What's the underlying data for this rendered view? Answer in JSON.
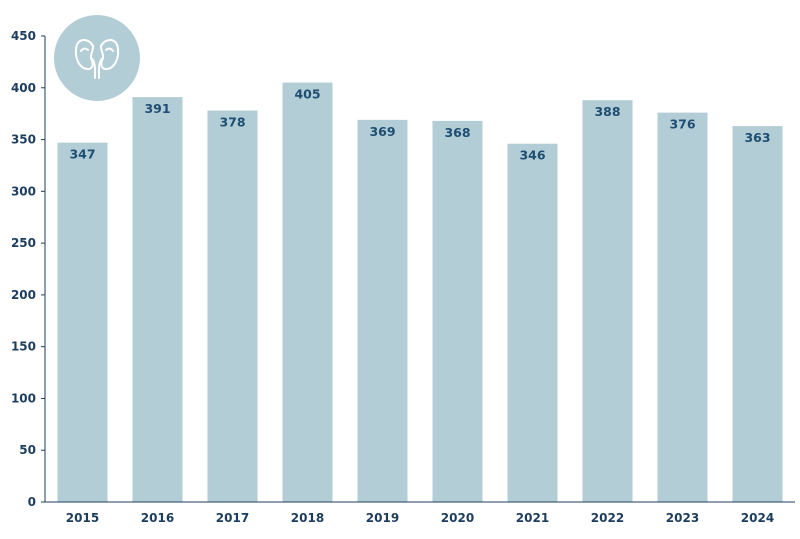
{
  "chart_data": {
    "type": "bar",
    "categories": [
      "2015",
      "2016",
      "2017",
      "2018",
      "2019",
      "2020",
      "2021",
      "2022",
      "2023",
      "2024"
    ],
    "values": [
      347,
      391,
      378,
      405,
      369,
      368,
      346,
      388,
      376,
      363
    ],
    "title": "",
    "xlabel": "",
    "ylabel": "",
    "ylim": [
      0,
      450
    ],
    "yticks": [
      0,
      50,
      100,
      150,
      200,
      250,
      300,
      350,
      400,
      450
    ],
    "grid": false,
    "legend": "none",
    "bar_color": "#b2cdd6",
    "label_color": "#1f4e73",
    "axis_color": "#1d3d5e",
    "badge_color": "#b2cdd6",
    "badge_icon": "kidneys-icon"
  }
}
